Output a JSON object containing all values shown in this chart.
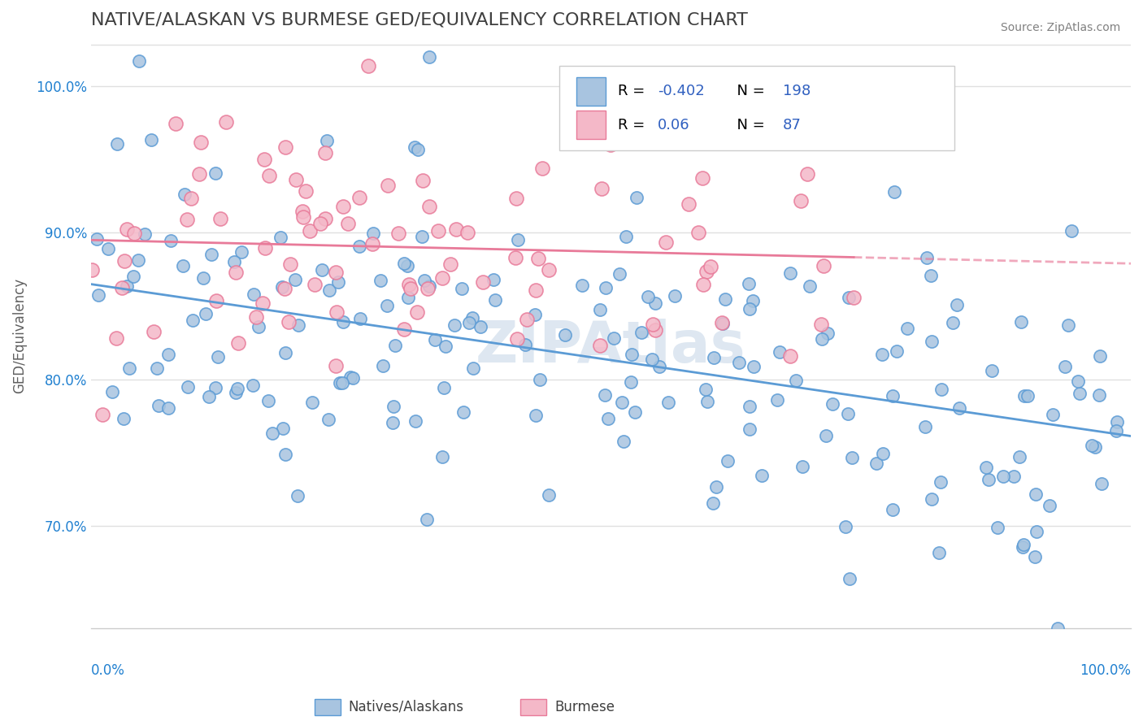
{
  "title": "NATIVE/ALASKAN VS BURMESE GED/EQUIVALENCY CORRELATION CHART",
  "source": "Source: ZipAtlas.com",
  "ylabel": "GED/Equivalency",
  "r_blue": -0.402,
  "n_blue": 198,
  "r_pink": 0.06,
  "n_pink": 87,
  "blue_color": "#a8c4e0",
  "pink_color": "#f4b8c8",
  "blue_line_color": "#5b9bd5",
  "pink_line_color": "#e87a99",
  "r_value_color": "#3060c0",
  "title_color": "#404040",
  "watermark_color": "#c8d8e8",
  "yaxis_label_color": "#2080d0",
  "xaxis_label_color": "#2080d0",
  "xlim": [
    0,
    1
  ],
  "ylim": [
    0.63,
    1.03
  ],
  "yticks": [
    0.7,
    0.8,
    0.9,
    1.0
  ],
  "ytick_labels": [
    "70.0%",
    "80.0%",
    "90.0%",
    "100.0%"
  ],
  "background_color": "#ffffff",
  "grid_color": "#e0e0e0"
}
